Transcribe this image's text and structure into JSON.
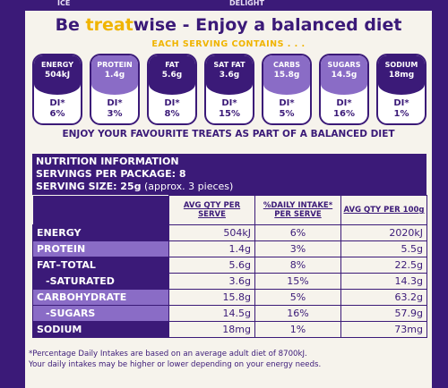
{
  "top_labels": [
    "ICE",
    "DELIGHT"
  ],
  "headline": {
    "pre": "Be ",
    "treat": "treat",
    "post": "wise - Enjoy a balanced diet"
  },
  "each_serving": "EACH SERVING CONTAINS . . .",
  "badges": [
    {
      "label": "ENERGY",
      "value": "504kJ",
      "di": "DI*",
      "pct": "6%",
      "style": "dark"
    },
    {
      "label": "PROTEIN",
      "value": "1.4g",
      "di": "DI*",
      "pct": "3%",
      "style": "light"
    },
    {
      "label": "FAT",
      "value": "5.6g",
      "di": "DI*",
      "pct": "8%",
      "style": "dark"
    },
    {
      "label": "SAT FAT",
      "value": "3.6g",
      "di": "DI*",
      "pct": "15%",
      "style": "dark"
    },
    {
      "label": "CARBS",
      "value": "15.8g",
      "di": "DI*",
      "pct": "5%",
      "style": "light"
    },
    {
      "label": "SUGARS",
      "value": "14.5g",
      "di": "DI*",
      "pct": "16%",
      "style": "light"
    },
    {
      "label": "SODIUM",
      "value": "18mg",
      "di": "DI*",
      "pct": "1%",
      "style": "dark"
    }
  ],
  "enjoy": "ENJOY YOUR FAVOURITE TREATS AS PART OF A BALANCED DIET",
  "nutrition": {
    "title": "NUTRITION INFORMATION",
    "servings": "SERVINGS PER PACKAGE: 8",
    "serving_size_label": "SERVING SIZE: 25g",
    "serving_size_note": " (approx. 3 pieces)",
    "headers": [
      "AVG QTY PER SERVE",
      "%DAILY INTAKE* PER SERVE",
      "AVG QTY PER 100g"
    ],
    "rows": [
      {
        "name": "ENERGY",
        "serve": "504kJ",
        "di": "6%",
        "per100": "2020kJ",
        "style": "dark"
      },
      {
        "name": "PROTEIN",
        "serve": "1.4g",
        "di": "3%",
        "per100": "5.5g",
        "style": "light"
      },
      {
        "name": "FAT–TOTAL",
        "serve": "5.6g",
        "di": "8%",
        "per100": "22.5g",
        "style": "dark"
      },
      {
        "name": "  -SATURATED",
        "serve": "3.6g",
        "di": "15%",
        "per100": "14.3g",
        "style": "dark"
      },
      {
        "name": "CARBOHYDRATE",
        "serve": "15.8g",
        "di": "5%",
        "per100": "63.2g",
        "style": "light"
      },
      {
        "name": "  -SUGARS",
        "serve": "14.5g",
        "di": "16%",
        "per100": "57.9g",
        "style": "light"
      },
      {
        "name": "SODIUM",
        "serve": "18mg",
        "di": "1%",
        "per100": "73mg",
        "style": "dark"
      }
    ],
    "footnote1": "*Percentage Daily Intakes are based on an average adult diet of 8700kJ.",
    "footnote2": "Your daily intakes may be higher or lower depending on your energy needs."
  },
  "colors": {
    "purple": "#3b1a78",
    "lavender": "#8a6cc6",
    "cream": "#f6f3ec",
    "gold": "#f0b400"
  }
}
